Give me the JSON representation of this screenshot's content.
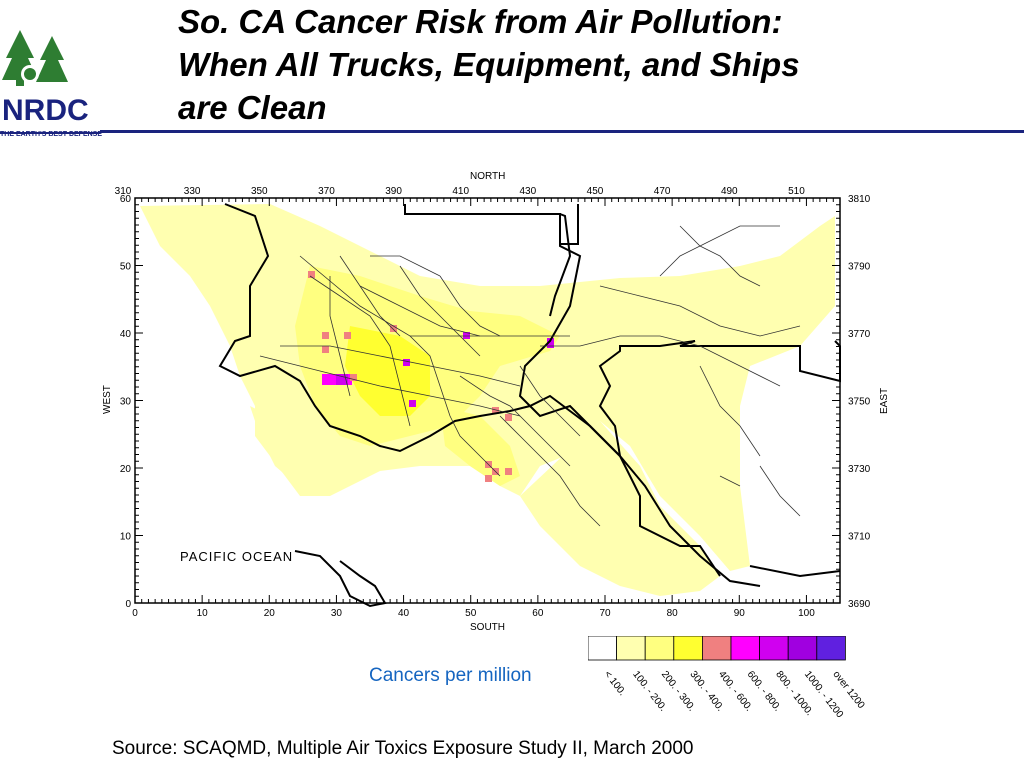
{
  "logo": {
    "brand": "NRDC",
    "tagline": "THE EARTH'S BEST DEFENSE"
  },
  "title": {
    "line1": "So. CA Cancer Risk from Air Pollution:",
    "line2": "When All Trucks, Equipment, and Ships",
    "line3": "are Clean"
  },
  "map": {
    "north_label": "NORTH",
    "south_label": "SOUTH",
    "west_label": "WEST",
    "east_label": "EAST",
    "ocean_label": "PACIFIC OCEAN",
    "top_ticks": [
      "310",
      "330",
      "350",
      "370",
      "390",
      "410",
      "430",
      "450",
      "470",
      "490",
      "510"
    ],
    "bottom_ticks": [
      "0",
      "10",
      "20",
      "30",
      "40",
      "50",
      "60",
      "70",
      "80",
      "90",
      "100"
    ],
    "left_ticks": [
      "0",
      "10",
      "20",
      "30",
      "40",
      "50",
      "60"
    ],
    "right_ticks": [
      "3690",
      "3710",
      "3730",
      "3750",
      "3770",
      "3790",
      "3810"
    ]
  },
  "legend": {
    "caption": "Cancers per million",
    "bins": [
      {
        "label": "< 100.",
        "color": "#ffffff"
      },
      {
        "label": "100. - 200.",
        "color": "#ffffb0"
      },
      {
        "label": "200. - 300.",
        "color": "#ffff80"
      },
      {
        "label": "300. - 400.",
        "color": "#ffff30"
      },
      {
        "label": "400. - 600.",
        "color": "#f08080"
      },
      {
        "label": "600. - 800.",
        "color": "#ff00ff"
      },
      {
        "label": "800. - 1000.",
        "color": "#d000f0"
      },
      {
        "label": "1000. - 1200",
        "color": "#a000e0"
      },
      {
        "label": "over 1200",
        "color": "#6020e0"
      }
    ]
  },
  "source": "Source: SCAQMD, Multiple Air Toxics Exposure Study II, March 2000"
}
